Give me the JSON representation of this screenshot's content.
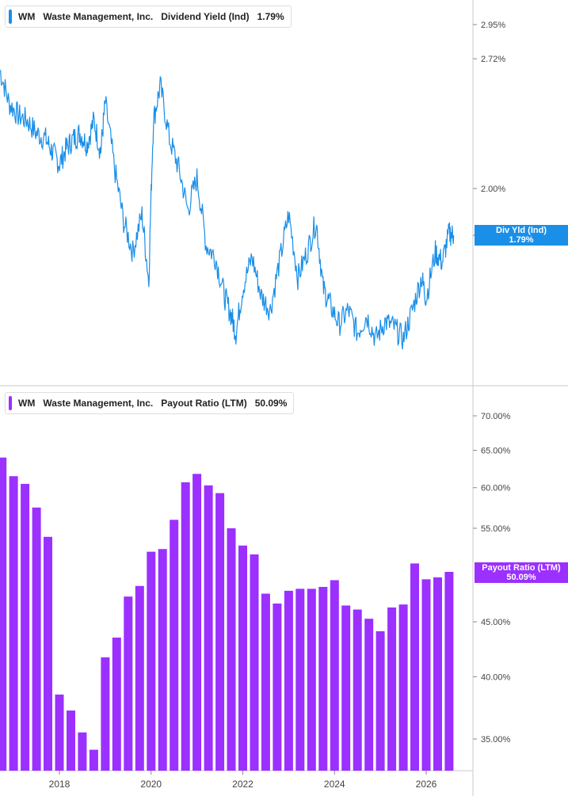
{
  "legends": {
    "top": {
      "ticker": "WM",
      "company": "Waste Management, Inc.",
      "metric": "Dividend Yield (Ind)",
      "value": "1.79%",
      "color": "#1a8fe8"
    },
    "bottom": {
      "ticker": "WM",
      "company": "Waste Management, Inc.",
      "metric": "Payout Ratio (LTM)",
      "value": "50.09%",
      "color": "#9b30ff"
    }
  },
  "tags": {
    "top": {
      "label": "Div Yld (Ind)",
      "value": "1.79%",
      "color": "#1a8fe8"
    },
    "bottom": {
      "label": "Payout Ratio (LTM)",
      "value": "50.09%",
      "color": "#9b30ff"
    }
  },
  "chart_data": [
    {
      "type": "line",
      "title": "WM Waste Management, Inc. Dividend Yield (Ind) 1.79%",
      "series": [
        {
          "name": "Dividend Yield (Ind)",
          "color": "#1a8fe8",
          "x": [
            2016.7,
            2016.9,
            2017.1,
            2017.3,
            2017.5,
            2017.7,
            2017.85,
            2018.0,
            2018.15,
            2018.3,
            2018.45,
            2018.6,
            2018.75,
            2018.9,
            2019.0,
            2019.2,
            2019.4,
            2019.6,
            2019.8,
            2019.95,
            2020.05,
            2020.2,
            2020.4,
            2020.6,
            2020.8,
            2021.0,
            2021.2,
            2021.4,
            2021.6,
            2021.75,
            2021.85,
            2022.0,
            2022.2,
            2022.4,
            2022.6,
            2022.8,
            2023.0,
            2023.2,
            2023.4,
            2023.6,
            2023.75,
            2023.9,
            2024.1,
            2024.3,
            2024.5,
            2024.7,
            2024.9,
            2025.1,
            2025.3,
            2025.5,
            2025.7,
            2025.9,
            2026.0,
            2026.2,
            2026.35,
            2026.5,
            2026.6
          ],
          "values": [
            2.65,
            2.45,
            2.38,
            2.35,
            2.28,
            2.25,
            2.18,
            2.12,
            2.2,
            2.25,
            2.28,
            2.22,
            2.35,
            2.18,
            2.45,
            2.1,
            1.85,
            1.72,
            1.88,
            1.6,
            2.35,
            2.55,
            2.25,
            2.1,
            1.9,
            2.05,
            1.75,
            1.7,
            1.55,
            1.48,
            1.42,
            1.58,
            1.7,
            1.55,
            1.5,
            1.68,
            1.88,
            1.62,
            1.72,
            1.85,
            1.58,
            1.52,
            1.45,
            1.5,
            1.42,
            1.48,
            1.4,
            1.46,
            1.44,
            1.4,
            1.5,
            1.62,
            1.54,
            1.72,
            1.68,
            1.8,
            1.79
          ]
        }
      ],
      "y_ticks": [
        "2.95%",
        "2.72%",
        "2.00%"
      ],
      "ylim": [
        1.35,
        3.05
      ],
      "scale": "log"
    },
    {
      "type": "bar",
      "title": "WM Waste Management, Inc. Payout Ratio (LTM) 50.09%",
      "series": [
        {
          "name": "Payout Ratio (LTM)",
          "color": "#9b30ff",
          "x": [
            2016.75,
            2017.0,
            2017.25,
            2017.5,
            2017.75,
            2018.0,
            2018.25,
            2018.5,
            2018.75,
            2019.0,
            2019.25,
            2019.5,
            2019.75,
            2020.0,
            2020.25,
            2020.5,
            2020.75,
            2021.0,
            2021.25,
            2021.5,
            2021.75,
            2022.0,
            2022.25,
            2022.5,
            2022.75,
            2023.0,
            2023.25,
            2023.5,
            2023.75,
            2024.0,
            2024.25,
            2024.5,
            2024.75,
            2025.0,
            2025.25,
            2025.5,
            2025.75,
            2026.0,
            2026.25,
            2026.5
          ],
          "values": [
            64.0,
            61.5,
            60.5,
            57.5,
            54.0,
            38.5,
            37.2,
            35.5,
            34.2,
            41.7,
            43.5,
            47.5,
            48.6,
            52.3,
            52.6,
            56.0,
            60.7,
            61.8,
            60.3,
            59.3,
            55.0,
            53.0,
            52.0,
            47.8,
            46.8,
            48.1,
            48.3,
            48.3,
            48.5,
            49.2,
            46.6,
            46.2,
            45.3,
            44.1,
            46.4,
            46.7,
            51.0,
            49.3,
            49.5,
            50.09
          ]
        }
      ],
      "y_ticks": [
        "70.00%",
        "65.00%",
        "60.00%",
        "55.00%",
        "45.00%",
        "40.00%",
        "35.00%"
      ],
      "ylim": [
        33.5,
        71.5
      ],
      "scale": "log"
    }
  ],
  "x_axis": {
    "ticks": [
      "2018",
      "2020",
      "2022",
      "2024",
      "2026"
    ],
    "tick_values": [
      2018,
      2020,
      2022,
      2024,
      2026
    ]
  }
}
